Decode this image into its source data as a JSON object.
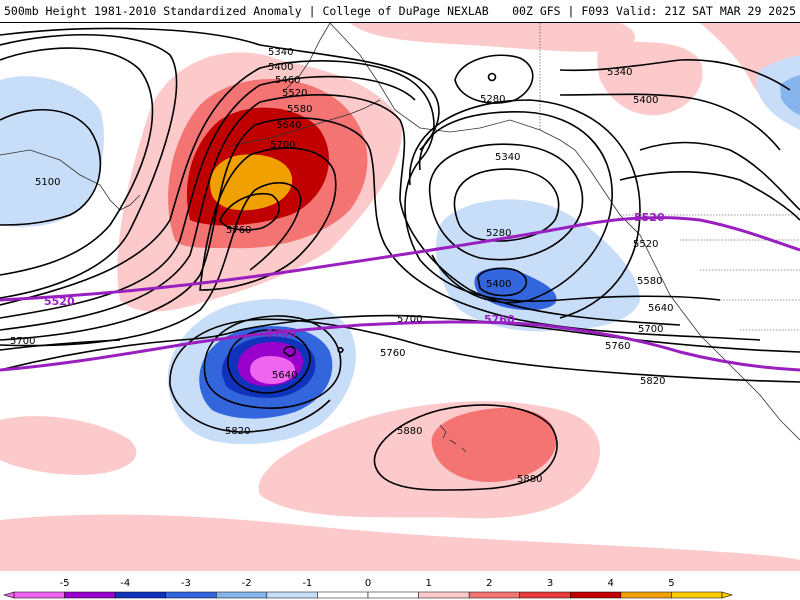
{
  "header": {
    "left_text": "500mb Height 1981-2010 Standardized Anomaly | College of DuPage NEXLAB",
    "right_text": "00Z GFS | F093 Valid: 21Z SAT MAR 29 2025"
  },
  "map": {
    "contour_labels": [
      {
        "id": "5340-top",
        "text": "5340"
      },
      {
        "id": "5400-top",
        "text": "5400"
      },
      {
        "id": "5460-top",
        "text": "5460"
      },
      {
        "id": "5520-top",
        "text": "5520"
      },
      {
        "id": "5580-top",
        "text": "5580"
      },
      {
        "id": "5640-top",
        "text": "5640"
      },
      {
        "id": "5700-top",
        "text": "5700"
      },
      {
        "id": "5760-low",
        "text": "5760"
      },
      {
        "id": "5100-left",
        "text": "5100"
      },
      {
        "id": "5700-left",
        "text": "5700"
      },
      {
        "id": "5280-ak",
        "text": "5280"
      },
      {
        "id": "5340-gulf",
        "text": "5340"
      },
      {
        "id": "5280-gulf",
        "text": "5280"
      },
      {
        "id": "5400-gulf",
        "text": "5400"
      },
      {
        "id": "5340-ne",
        "text": "5340"
      },
      {
        "id": "5400-ne",
        "text": "5400"
      },
      {
        "id": "5520-coast",
        "text": "5520"
      },
      {
        "id": "5580-coast",
        "text": "5580"
      },
      {
        "id": "5640-coast",
        "text": "5640"
      },
      {
        "id": "5700-coast",
        "text": "5700"
      },
      {
        "id": "5760-coast",
        "text": "5760"
      },
      {
        "id": "5820-coast",
        "text": "5820"
      },
      {
        "id": "5700-mid",
        "text": "5700"
      },
      {
        "id": "5760-mid",
        "text": "5760"
      },
      {
        "id": "5640-low",
        "text": "5640"
      },
      {
        "id": "5820-low",
        "text": "5820"
      },
      {
        "id": "5880-hi",
        "text": "5880"
      },
      {
        "id": "5880-hi2",
        "text": "5880"
      }
    ],
    "thick_labels": [
      {
        "id": "5520-thick-left",
        "text": "5520"
      },
      {
        "id": "5520-thick-right",
        "text": "5520"
      },
      {
        "id": "5760-thick-low",
        "text": "5760"
      },
      {
        "id": "5760-thick-mid",
        "text": "5760"
      }
    ]
  },
  "colorbar": {
    "labels": [
      "-5",
      "-4",
      "-3",
      "-2",
      "-1",
      "0",
      "1",
      "2",
      "3",
      "4",
      "5"
    ],
    "colors": [
      "#ee66ee",
      "#9900cc",
      "#1133bb",
      "#3366dd",
      "#88b4ee",
      "#c8ddf8",
      "#ffffff",
      "#ffffff",
      "#fccaca",
      "#f47474",
      "#e63b3b",
      "#c00000",
      "#f0a000",
      "#ffcc00"
    ]
  }
}
